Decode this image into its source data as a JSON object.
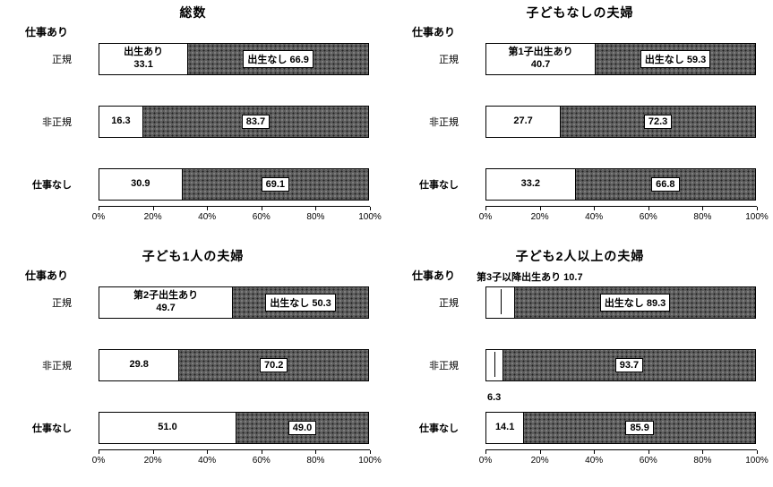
{
  "page": {
    "background": "#ffffff"
  },
  "colors": {
    "segment_birth_fill": "#ffffff",
    "segment_no_birth_fill": "#5e5e5e",
    "border": "#000000"
  },
  "chart_data": [
    {
      "type": "bar",
      "orientation": "horizontal",
      "stacked": true,
      "title": "総数",
      "category_group_header": "仕事あり",
      "categories": [
        "正規",
        "非正規",
        "仕事なし"
      ],
      "series": [
        {
          "name": "出生あり",
          "values": [
            33.1,
            16.3,
            30.9
          ]
        },
        {
          "name": "出生なし",
          "values": [
            66.9,
            83.7,
            69.1
          ]
        }
      ],
      "xlim": [
        0,
        100
      ],
      "x_unit": "%",
      "grid": false,
      "tick_labels": [
        "0%",
        "20%",
        "40%",
        "60%",
        "80%",
        "100%"
      ]
    },
    {
      "type": "bar",
      "orientation": "horizontal",
      "stacked": true,
      "title": "子どもなしの夫婦",
      "category_group_header": "仕事あり",
      "categories": [
        "正規",
        "非正規",
        "仕事なし"
      ],
      "series": [
        {
          "name": "第1子出生あり",
          "values": [
            40.7,
            27.7,
            33.2
          ]
        },
        {
          "name": "出生なし",
          "values": [
            59.3,
            72.3,
            66.8
          ]
        }
      ],
      "xlim": [
        0,
        100
      ],
      "x_unit": "%",
      "grid": false,
      "tick_labels": [
        "0%",
        "20%",
        "40%",
        "60%",
        "80%",
        "100%"
      ]
    },
    {
      "type": "bar",
      "orientation": "horizontal",
      "stacked": true,
      "title": "子ども1人の夫婦",
      "category_group_header": "仕事あり",
      "categories": [
        "正規",
        "非正規",
        "仕事なし"
      ],
      "series": [
        {
          "name": "第2子出生あり",
          "values": [
            49.7,
            29.8,
            51.0
          ]
        },
        {
          "name": "出生なし",
          "values": [
            50.3,
            70.2,
            49.0
          ]
        }
      ],
      "xlim": [
        0,
        100
      ],
      "x_unit": "%",
      "grid": false,
      "tick_labels": [
        "0%",
        "20%",
        "40%",
        "60%",
        "80%",
        "100%"
      ]
    },
    {
      "type": "bar",
      "orientation": "horizontal",
      "stacked": true,
      "title": "子ども2人以上の夫婦",
      "category_group_header": "仕事あり",
      "categories": [
        "正規",
        "非正規",
        "仕事なし"
      ],
      "series": [
        {
          "name": "第3子以降出生あり",
          "values": [
            10.7,
            6.3,
            14.1
          ]
        },
        {
          "name": "出生なし",
          "values": [
            89.3,
            93.7,
            85.9
          ]
        }
      ],
      "xlim": [
        0,
        100
      ],
      "x_unit": "%",
      "grid": false,
      "tick_labels": [
        "0%",
        "20%",
        "40%",
        "60%",
        "80%",
        "100%"
      ]
    }
  ],
  "panels": [
    {
      "rows": [
        {
          "seg1": "出生あり\n33.1",
          "seg2": "出生なし 66.9"
        },
        {
          "seg1": "16.3",
          "seg2": "83.7"
        },
        {
          "seg1": "30.9",
          "seg2": "69.1"
        }
      ]
    },
    {
      "rows": [
        {
          "seg1": "第1子出生あり\n40.7",
          "seg2": "出生なし 59.3"
        },
        {
          "seg1": "27.7",
          "seg2": "72.3"
        },
        {
          "seg1": "33.2",
          "seg2": "66.8"
        }
      ]
    },
    {
      "rows": [
        {
          "seg1": "第2子出生あり\n49.7",
          "seg2": "出生なし 50.3"
        },
        {
          "seg1": "29.8",
          "seg2": "70.2"
        },
        {
          "seg1": "51.0",
          "seg2": "49.0"
        }
      ]
    },
    {
      "rows": [
        {
          "seg1": "",
          "seg2": "出生なし 89.3"
        },
        {
          "seg1": "",
          "seg2": "93.7"
        },
        {
          "seg1": "14.1",
          "seg2": "85.9"
        }
      ],
      "callout_top": "第3子以降出生あり 10.7",
      "callout_mid": "6.3"
    }
  ]
}
